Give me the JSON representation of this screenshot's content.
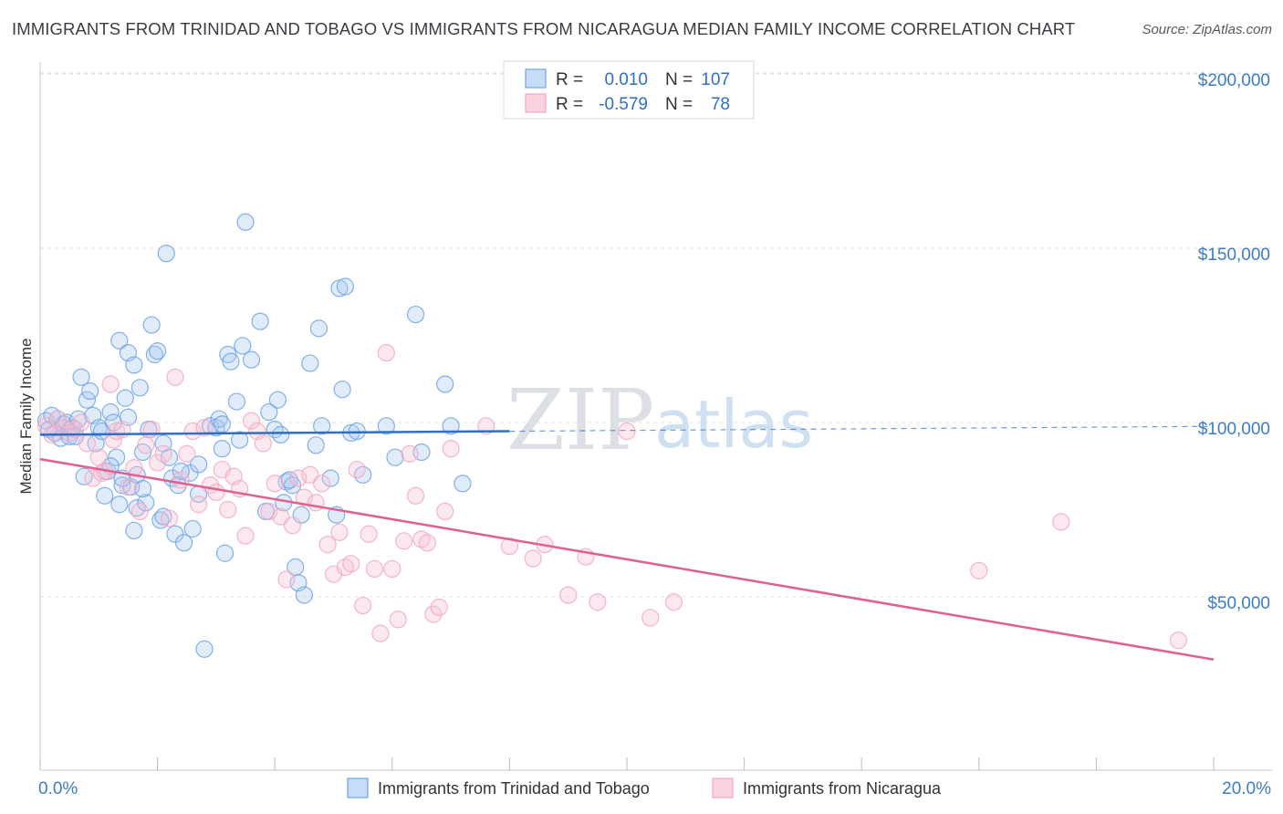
{
  "title": "IMMIGRANTS FROM TRINIDAD AND TOBAGO VS IMMIGRANTS FROM NICARAGUA MEDIAN FAMILY INCOME CORRELATION CHART",
  "source": "Source: ZipAtlas.com",
  "watermark": {
    "part1": "ZIP",
    "part2": "atlas"
  },
  "legend": {
    "rows": [
      {
        "r_label": "R =",
        "r_value": "0.010",
        "n_label": "N =",
        "n_value": "107"
      },
      {
        "r_label": "R =",
        "r_value": "-0.579",
        "n_label": "N =",
        "n_value": "78"
      }
    ]
  },
  "chart_data": {
    "type": "scatter",
    "ylabel": "Median Family Income",
    "xlabel": "",
    "xlim": [
      0,
      20
    ],
    "ylim": [
      0,
      210000
    ],
    "x_tick_labels": [
      "0.0%",
      "20.0%"
    ],
    "y_ticks": [
      {
        "value": 50000,
        "label": "$50,000"
      },
      {
        "value": 100000,
        "label": "$100,000"
      },
      {
        "value": 150000,
        "label": "$150,000"
      },
      {
        "value": 200000,
        "label": "$200,000"
      }
    ],
    "grid": "horizontal dashed",
    "series": [
      {
        "name": "Immigrants from Trinidad and Tobago",
        "color": "#6fa3e6",
        "line_color": "#2f6fc7",
        "trend": {
          "x0": 0,
          "y0": 96500,
          "x1": 8,
          "y1": 97500,
          "dashed_to_x": 20,
          "dashed_to_y": 98900
        },
        "points": [
          [
            0.1,
            100500
          ],
          [
            0.15,
            98000
          ],
          [
            0.2,
            102000
          ],
          [
            0.25,
            97000
          ],
          [
            0.3,
            101000
          ],
          [
            0.35,
            95500
          ],
          [
            0.4,
            99500
          ],
          [
            0.45,
            100000
          ],
          [
            0.5,
            96000
          ],
          [
            0.55,
            98500
          ],
          [
            0.6,
            96000
          ],
          [
            0.65,
            101000
          ],
          [
            0.7,
            113000
          ],
          [
            0.75,
            84500
          ],
          [
            0.8,
            106500
          ],
          [
            0.85,
            109000
          ],
          [
            0.9,
            102000
          ],
          [
            0.95,
            94000
          ],
          [
            1.0,
            98500
          ],
          [
            1.05,
            97500
          ],
          [
            1.1,
            79000
          ],
          [
            1.15,
            86000
          ],
          [
            1.2,
            103000
          ],
          [
            1.25,
            100000
          ],
          [
            1.3,
            90000
          ],
          [
            1.35,
            76500
          ],
          [
            1.4,
            82000
          ],
          [
            1.45,
            107000
          ],
          [
            1.5,
            101500
          ],
          [
            1.55,
            81500
          ],
          [
            1.6,
            69000
          ],
          [
            1.65,
            85000
          ],
          [
            1.35,
            123500
          ],
          [
            1.4,
            84000
          ],
          [
            1.5,
            120000
          ],
          [
            1.6,
            116500
          ],
          [
            1.65,
            75500
          ],
          [
            1.7,
            110000
          ],
          [
            1.75,
            91500
          ],
          [
            1.8,
            77000
          ],
          [
            1.85,
            98000
          ],
          [
            1.9,
            128000
          ],
          [
            1.95,
            119500
          ],
          [
            2.0,
            120500
          ],
          [
            2.05,
            72000
          ],
          [
            2.1,
            94000
          ],
          [
            2.15,
            148500
          ],
          [
            2.2,
            90000
          ],
          [
            2.25,
            84000
          ],
          [
            2.3,
            68000
          ],
          [
            2.35,
            82000
          ],
          [
            2.45,
            65500
          ],
          [
            2.55,
            85500
          ],
          [
            2.6,
            69500
          ],
          [
            2.7,
            88000
          ],
          [
            2.8,
            35000
          ],
          [
            2.9,
            99000
          ],
          [
            3.0,
            98500
          ],
          [
            3.05,
            101000
          ],
          [
            3.1,
            92500
          ],
          [
            3.15,
            62500
          ],
          [
            3.2,
            119500
          ],
          [
            3.25,
            117500
          ],
          [
            3.35,
            106000
          ],
          [
            3.4,
            95000
          ],
          [
            3.45,
            122000
          ],
          [
            3.5,
            157500
          ],
          [
            3.6,
            118000
          ],
          [
            3.75,
            129000
          ],
          [
            3.85,
            74500
          ],
          [
            3.9,
            103000
          ],
          [
            4.0,
            98000
          ],
          [
            4.05,
            106500
          ],
          [
            4.1,
            96500
          ],
          [
            4.15,
            77000
          ],
          [
            4.2,
            83000
          ],
          [
            4.3,
            82000
          ],
          [
            4.35,
            58500
          ],
          [
            4.4,
            54000
          ],
          [
            4.45,
            73500
          ],
          [
            4.5,
            50500
          ],
          [
            4.6,
            117000
          ],
          [
            4.7,
            93500
          ],
          [
            4.75,
            127000
          ],
          [
            4.8,
            99000
          ],
          [
            4.95,
            84000
          ],
          [
            5.05,
            73500
          ],
          [
            5.1,
            138500
          ],
          [
            5.15,
            109500
          ],
          [
            5.2,
            139000
          ],
          [
            5.3,
            97000
          ],
          [
            5.5,
            85000
          ],
          [
            5.9,
            99000
          ],
          [
            6.05,
            90000
          ],
          [
            6.4,
            131000
          ],
          [
            6.5,
            91500
          ],
          [
            6.9,
            111000
          ],
          [
            7.0,
            99000
          ],
          [
            7.2,
            82500
          ],
          [
            2.4,
            86000
          ],
          [
            2.7,
            79500
          ],
          [
            1.2,
            87500
          ],
          [
            1.75,
            81000
          ],
          [
            2.1,
            73000
          ],
          [
            3.1,
            99500
          ],
          [
            4.25,
            83500
          ],
          [
            5.4,
            97500
          ]
        ]
      },
      {
        "name": "Immigrants from Nicaragua",
        "color": "#f2a8c2",
        "line_color": "#e0608f",
        "trend": {
          "x0": 0,
          "y0": 89500,
          "x1": 20,
          "y1": 32000
        },
        "points": [
          [
            0.1,
            99000
          ],
          [
            0.2,
            96500
          ],
          [
            0.3,
            101000
          ],
          [
            0.4,
            98500
          ],
          [
            0.5,
            97000
          ],
          [
            0.6,
            98000
          ],
          [
            0.7,
            100000
          ],
          [
            0.8,
            94000
          ],
          [
            0.9,
            84000
          ],
          [
            1.0,
            90000
          ],
          [
            1.05,
            85500
          ],
          [
            1.1,
            86000
          ],
          [
            1.2,
            111000
          ],
          [
            1.25,
            95000
          ],
          [
            1.3,
            97500
          ],
          [
            1.4,
            98000
          ],
          [
            1.5,
            81500
          ],
          [
            1.6,
            87000
          ],
          [
            1.7,
            74500
          ],
          [
            1.8,
            93500
          ],
          [
            1.9,
            98000
          ],
          [
            2.0,
            88500
          ],
          [
            2.1,
            91000
          ],
          [
            2.2,
            72500
          ],
          [
            2.3,
            113000
          ],
          [
            2.4,
            83500
          ],
          [
            2.5,
            91000
          ],
          [
            2.6,
            97500
          ],
          [
            2.7,
            76500
          ],
          [
            2.8,
            98500
          ],
          [
            2.9,
            82000
          ],
          [
            3.0,
            80000
          ],
          [
            3.1,
            86500
          ],
          [
            3.2,
            75000
          ],
          [
            3.3,
            84500
          ],
          [
            3.4,
            81000
          ],
          [
            3.5,
            67500
          ],
          [
            3.6,
            100500
          ],
          [
            3.7,
            97500
          ],
          [
            3.8,
            94000
          ],
          [
            3.9,
            74500
          ],
          [
            4.0,
            82500
          ],
          [
            4.1,
            73000
          ],
          [
            4.2,
            55000
          ],
          [
            4.3,
            70500
          ],
          [
            4.4,
            84000
          ],
          [
            4.5,
            78500
          ],
          [
            4.6,
            85000
          ],
          [
            4.7,
            77000
          ],
          [
            4.8,
            82500
          ],
          [
            4.9,
            65000
          ],
          [
            5.0,
            56500
          ],
          [
            5.1,
            68500
          ],
          [
            5.2,
            58500
          ],
          [
            5.3,
            59500
          ],
          [
            5.4,
            86500
          ],
          [
            5.5,
            47500
          ],
          [
            5.6,
            68000
          ],
          [
            5.7,
            58000
          ],
          [
            5.8,
            39500
          ],
          [
            5.9,
            120000
          ],
          [
            6.0,
            58000
          ],
          [
            6.1,
            43500
          ],
          [
            6.2,
            66000
          ],
          [
            6.3,
            91000
          ],
          [
            6.4,
            79000
          ],
          [
            6.5,
            66500
          ],
          [
            6.6,
            65500
          ],
          [
            6.7,
            45000
          ],
          [
            6.8,
            47000
          ],
          [
            6.9,
            74500
          ],
          [
            7.0,
            92500
          ],
          [
            7.6,
            99000
          ],
          [
            8.0,
            64500
          ],
          [
            8.4,
            61000
          ],
          [
            8.6,
            65000
          ],
          [
            9.0,
            50500
          ],
          [
            9.3,
            61500
          ]
        ]
      }
    ]
  },
  "extra_pink_points": [
    [
      9.5,
      48500
    ],
    [
      10.0,
      97500
    ],
    [
      10.4,
      44000
    ],
    [
      10.8,
      48500
    ],
    [
      16.0,
      57500
    ],
    [
      17.4,
      71500
    ],
    [
      19.4,
      37500
    ]
  ],
  "bottom_legend": {
    "items": [
      {
        "label": "Immigrants from Trinidad and Tobago",
        "color": "#6fa3e6"
      },
      {
        "label": "Immigrants from Nicaragua",
        "color": "#f2a8c2"
      }
    ]
  }
}
